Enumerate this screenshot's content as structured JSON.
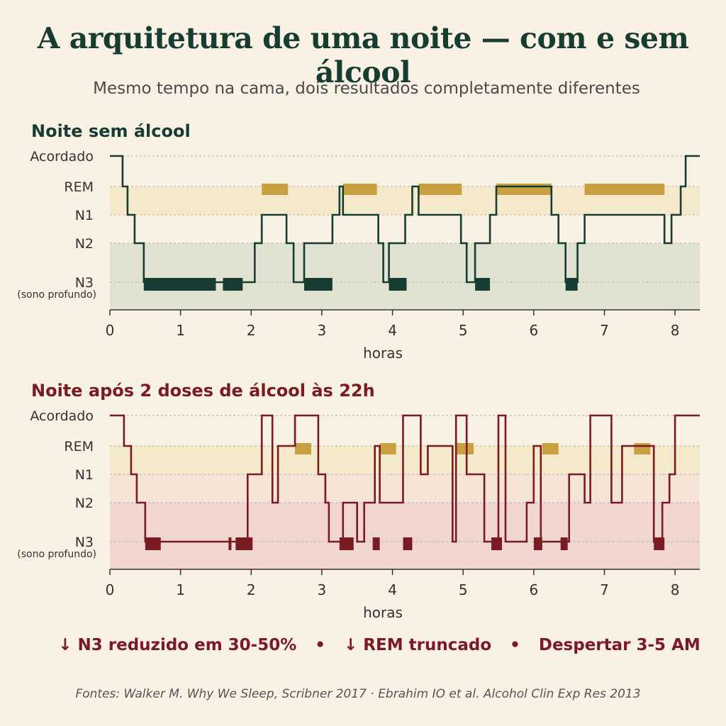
{
  "title": "A arquitetura de uma noite — com e sem álcool",
  "subtitle": "Mesmo tempo na cama, dois resultados completamente diferentes",
  "summary": {
    "item1": "↓ N3 reduzido em 30-50%",
    "item2": "↓ REM truncado",
    "item3": "Despertar 3-5 AM",
    "separator": "•"
  },
  "sources": "Fontes: Walker M. Why We Sleep, Scribner 2017 · Ebrahim IO et al. Alcohol Clin Exp Res 2013",
  "colors": {
    "sober_line": "#173d33",
    "sober_n3_band": "#dfe3cf",
    "alcohol_line": "#7a1a22",
    "alcohol_n3_band": "#f1d6d0",
    "rem_band": "#f4eacb",
    "n1_band_alcohol": "#f5e3d6",
    "rem_marker": "#c9a040"
  },
  "chart_data": [
    {
      "type": "line",
      "title": "Noite sem álcool",
      "xlabel": "horas",
      "ylabel": "",
      "xlim": [
        0,
        8.35
      ],
      "x_ticks": [
        "0",
        "1",
        "2",
        "3",
        "4",
        "5",
        "6",
        "7",
        "8"
      ],
      "stage_labels": [
        "Acordado",
        "REM",
        "N1",
        "N2",
        "N3"
      ],
      "stage_sublabel": "(sono profundo)",
      "series": [
        {
          "x": [
            0,
            0.18,
            0.18,
            0.25,
            0.25,
            0.35,
            0.35,
            0.48,
            0.48,
            2.05,
            2.05,
            2.15,
            2.15,
            2.5,
            2.5,
            2.6,
            2.6,
            2.75,
            2.75,
            3.15,
            3.15,
            3.25,
            3.25,
            3.3,
            3.3,
            3.8,
            3.8,
            3.87,
            3.87,
            3.95,
            3.95,
            4.18,
            4.18,
            4.28,
            4.28,
            4.37,
            4.37,
            4.97,
            4.97,
            5.05,
            5.05,
            5.17,
            5.17,
            5.38,
            5.38,
            5.47,
            5.47,
            6.25,
            6.25,
            6.35,
            6.35,
            6.45,
            6.45,
            6.62,
            6.62,
            6.72,
            6.72,
            7.85,
            7.85,
            7.95,
            7.95,
            8.08,
            8.08,
            8.15,
            8.15,
            8.35
          ],
          "y": [
            "Acordado",
            "Acordado",
            "REM",
            "REM",
            "N1",
            "N1",
            "N2",
            "N2",
            "N3",
            "N3",
            "N2",
            "N2",
            "N1",
            "N1",
            "N2",
            "N2",
            "N3",
            "N3",
            "N2",
            "N2",
            "N1",
            "N1",
            "REM",
            "REM",
            "N1",
            "N1",
            "N2",
            "N2",
            "N3",
            "N3",
            "N2",
            "N2",
            "N1",
            "N1",
            "REM",
            "REM",
            "N1",
            "N1",
            "N2",
            "N2",
            "N3",
            "N3",
            "N2",
            "N2",
            "N1",
            "N1",
            "REM",
            "REM",
            "N1",
            "N1",
            "N2",
            "N2",
            "N3",
            "N3",
            "N2",
            "N2",
            "N1",
            "N1",
            "N2",
            "N2",
            "N1",
            "N1",
            "REM",
            "REM",
            "Acordado",
            "Acordado"
          ]
        }
      ],
      "n3_segments": [
        [
          0.48,
          1.5
        ],
        [
          1.6,
          1.88
        ],
        [
          2.75,
          3.15
        ],
        [
          3.95,
          4.2
        ],
        [
          5.17,
          5.38
        ],
        [
          6.45,
          6.62
        ]
      ],
      "rem_segments": [
        [
          2.15,
          2.52
        ],
        [
          3.3,
          3.78
        ],
        [
          4.37,
          4.98
        ],
        [
          5.47,
          6.25
        ],
        [
          6.72,
          7.85
        ]
      ]
    },
    {
      "type": "line",
      "title": "Noite após 2 doses de álcool às 22h",
      "xlabel": "horas",
      "ylabel": "",
      "xlim": [
        0,
        8.35
      ],
      "x_ticks": [
        "0",
        "1",
        "2",
        "3",
        "4",
        "5",
        "6",
        "7",
        "8"
      ],
      "stage_labels": [
        "Acordado",
        "REM",
        "N1",
        "N2",
        "N3"
      ],
      "stage_sublabel": "(sono profundo)",
      "series": [
        {
          "x": [
            0,
            0.2,
            0.2,
            0.3,
            0.3,
            0.38,
            0.38,
            0.5,
            0.5,
            1.95,
            1.95,
            2.15,
            2.15,
            2.3,
            2.3,
            2.38,
            2.38,
            2.62,
            2.62,
            2.95,
            2.95,
            3.05,
            3.05,
            3.1,
            3.1,
            3.3,
            3.3,
            3.5,
            3.5,
            3.6,
            3.6,
            3.75,
            3.75,
            3.82,
            3.82,
            4.15,
            4.15,
            4.4,
            4.4,
            4.5,
            4.5,
            4.85,
            4.85,
            4.9,
            4.9,
            5.05,
            5.05,
            5.3,
            5.3,
            5.5,
            5.5,
            5.6,
            5.6,
            5.9,
            5.9,
            6.0,
            6.0,
            6.1,
            6.1,
            6.5,
            6.5,
            6.72,
            6.72,
            6.8,
            6.8,
            7.1,
            7.1,
            7.25,
            7.25,
            7.7,
            7.7,
            7.82,
            7.82,
            7.92,
            7.92,
            8.0,
            8.0,
            8.35
          ],
          "y": [
            "Acordado",
            "Acordado",
            "REM",
            "REM",
            "N1",
            "N1",
            "N2",
            "N2",
            "N3",
            "N3",
            "N1",
            "N1",
            "Acordado",
            "Acordado",
            "N2",
            "N2",
            "REM",
            "REM",
            "Acordado",
            "Acordado",
            "N1",
            "N1",
            "N2",
            "N2",
            "N3",
            "N3",
            "N2",
            "N2",
            "N3",
            "N3",
            "N2",
            "N2",
            "REM",
            "REM",
            "N2",
            "N2",
            "Acordado",
            "Acordado",
            "N1",
            "N1",
            "REM",
            "REM",
            "N3",
            "N3",
            "Acordado",
            "Acordado",
            "N1",
            "N1",
            "N3",
            "N3",
            "Acordado",
            "Acordado",
            "N3",
            "N3",
            "N2",
            "N2",
            "REM",
            "REM",
            "N3",
            "N3",
            "N1",
            "N1",
            "N2",
            "N2",
            "Acordado",
            "Acordado",
            "N2",
            "N2",
            "REM",
            "REM",
            "N3",
            "N3",
            "N2",
            "N2",
            "N1",
            "N1",
            "Acordado",
            "Acordado"
          ]
        }
      ],
      "n3_segments": [
        [
          0.5,
          0.72
        ],
        [
          1.68,
          1.72
        ],
        [
          1.78,
          2.02
        ],
        [
          3.25,
          3.45
        ],
        [
          3.72,
          3.82
        ],
        [
          4.15,
          4.28
        ],
        [
          5.4,
          5.55
        ],
        [
          6.0,
          6.12
        ],
        [
          6.38,
          6.48
        ],
        [
          7.7,
          7.85
        ]
      ],
      "rem_segments": [
        [
          2.62,
          2.85
        ],
        [
          3.82,
          4.05
        ],
        [
          4.9,
          5.15
        ],
        [
          6.12,
          6.35
        ],
        [
          7.42,
          7.65
        ]
      ]
    }
  ]
}
